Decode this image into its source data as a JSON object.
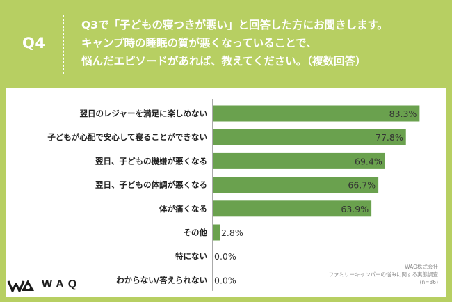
{
  "header": {
    "question_id": "Q4",
    "question_lines": [
      "Q3で「子どもの寝つきが悪い」と回答した方にお聞きします。",
      "キャンプ時の睡眠の質が悪くなっていることで、",
      "悩んだエピソードがあれば、教えてください。（複数回答）"
    ]
  },
  "colors": {
    "background": "#b7cf62",
    "bar": "#6aa14e",
    "panel": "#ffffff"
  },
  "chart_data": {
    "type": "bar",
    "orientation": "horizontal",
    "categories": [
      "翌日のレジャーを満足に楽しめない",
      "子どもが心配で安心して寝ることができない",
      "翌日、子どもの機嫌が悪くなる",
      "翌日、子どもの体調が悪くなる",
      "体が痛くなる",
      "その他",
      "特にない",
      "わからない/答えられない"
    ],
    "values": [
      83.3,
      77.8,
      69.4,
      66.7,
      63.9,
      2.8,
      0.0,
      0.0
    ],
    "value_labels": [
      "83.3%",
      "77.8%",
      "69.4%",
      "66.7%",
      "63.9%",
      "2.8%",
      "0.0%",
      "0.0%"
    ],
    "xlim": [
      0,
      100
    ],
    "grid": false,
    "legend": "none"
  },
  "source": {
    "company": "WAQ株式会社",
    "survey": "ファミリーキャンパーの悩みに関する実態調査",
    "n": "(n=36)"
  },
  "logo": {
    "text": "WAQ",
    "icon": "waq-logo-icon"
  }
}
